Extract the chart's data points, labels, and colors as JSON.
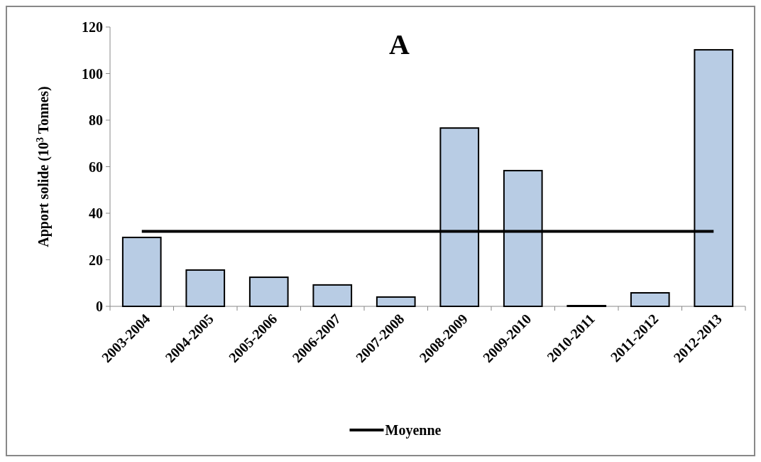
{
  "chart_data": {
    "type": "bar",
    "title": "A",
    "ylabel": "Apport solide (10$^{3}$ Tonnes)",
    "categories": [
      "2003-2004",
      "2004-2005",
      "2005-2006",
      "2006-2007",
      "2007-2008",
      "2008-2009",
      "2009-2010",
      "2010-2011",
      "2011-2012",
      "2012-2013"
    ],
    "series": [
      {
        "color": "#b8cce4",
        "values": [
          29.6,
          15.6,
          12.5,
          9.2,
          4.0,
          76.6,
          58.3,
          0.3,
          5.8,
          110.2
        ]
      },
      {
        "type": "line",
        "name": "Moyenne",
        "color": "#000000",
        "values": [
          32.2,
          32.2,
          32.2,
          32.2,
          32.2,
          32.2,
          32.2,
          32.2,
          32.2,
          32.2
        ]
      }
    ],
    "ylim": [
      0,
      120
    ],
    "yticks": [
      0,
      20,
      40,
      60,
      80,
      100,
      120
    ],
    "grid": false,
    "legend": "bottom",
    "marker": "none",
    "line_style": "solid"
  }
}
